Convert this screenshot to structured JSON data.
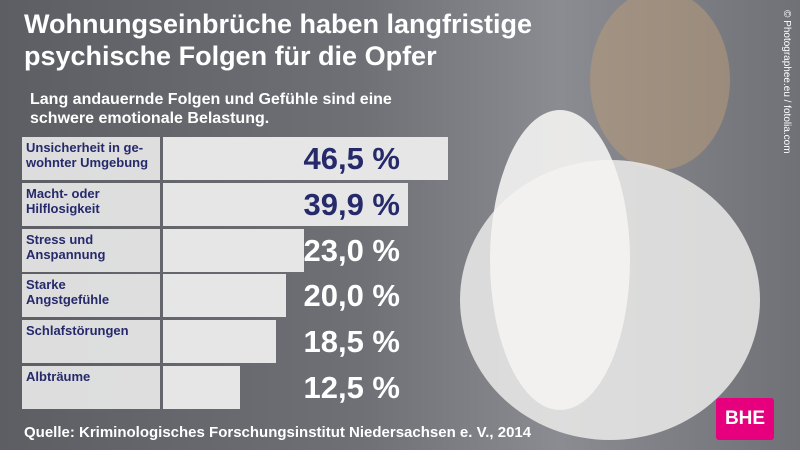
{
  "chart_data": {
    "type": "bar",
    "title": "Wohnungseinbrüche haben langfristige\npsychische Folgen für die Opfer",
    "subtitle": "Lang andauernde Folgen und Gefühle sind eine\nschwere emotionale Belastung.",
    "categories": [
      "Unsicherheit in ge-\nwohnter Umgebung",
      "Macht- oder\nHilflosigkeit",
      "Stress und\nAnspannung",
      "Starke\nAngstgefühle",
      "Schlafstörungen",
      "Albträume"
    ],
    "values": [
      46.5,
      39.9,
      23.0,
      20.0,
      18.5,
      12.5
    ],
    "value_labels": [
      "46,5 %",
      "39,9 %",
      "23,0 %",
      "20,0 %",
      "18,5 %",
      "12,5 %"
    ],
    "value_label_colors": [
      "#262a6b",
      "#262a6b",
      "#ffffff",
      "#ffffff",
      "#ffffff",
      "#ffffff"
    ],
    "color": "#e6e6e6",
    "source": "Quelle: Kriminologisches Forschungsinstitut Niedersachsen e. V., 2014",
    "credit": "© Photographee.eu / fotolia.com",
    "logo": "BHE"
  }
}
